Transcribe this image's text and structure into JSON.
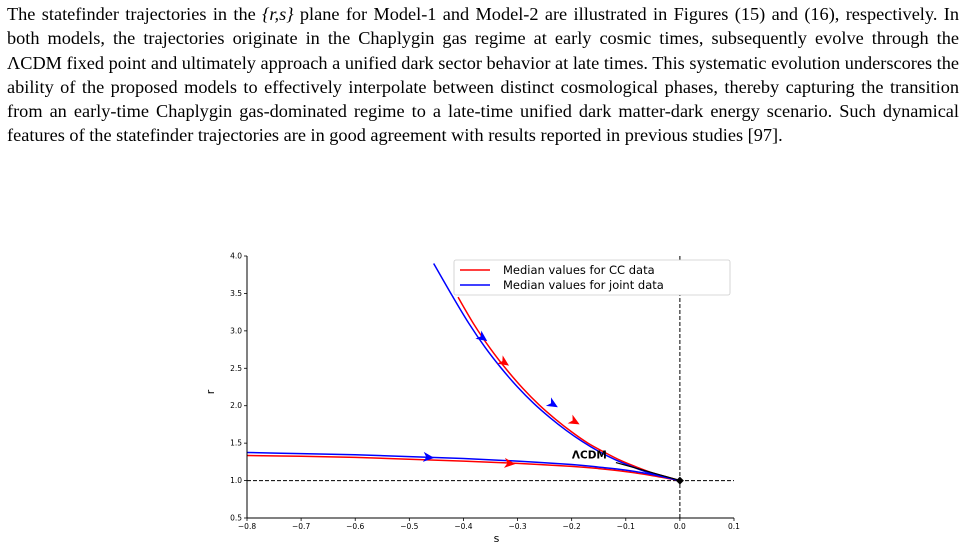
{
  "paragraph": {
    "part1": "The statefinder trajectories in the ",
    "math": "{r,s}",
    "part2": " plane for Model-1 and Model-2 are illustrated in Figures (15) and (16), respectively. In both models, the trajectories originate in the Chaplygin gas regime at early cosmic times, subsequently evolve through the ΛCDM fixed point and ultimately approach a unified dark sector behavior at late times. This systematic evolution underscores the ability of the proposed models to effectively interpolate between distinct cosmological phases, thereby capturing the transition from an early-time Chaplygin gas-dominated regime to a late-time unified dark matter-dark energy scenario. Such dynamical features of the statefinder trajectories are in good agreement with results reported in previous studies [97]."
  },
  "chart_data": {
    "type": "line",
    "xlabel": "s",
    "ylabel": "r",
    "xlim": [
      -0.8,
      0.1
    ],
    "ylim": [
      0.5,
      4.0
    ],
    "xticks": [
      "−0.8",
      "−0.7",
      "−0.6",
      "−0.5",
      "−0.4",
      "−0.3",
      "−0.2",
      "−0.1",
      "0.0",
      "0.1"
    ],
    "yticks": [
      "0.5",
      "1.0",
      "1.5",
      "2.0",
      "2.5",
      "3.0",
      "3.5",
      "4.0"
    ],
    "grid": false,
    "legend_position": "top-right",
    "annotation": "ΛCDM",
    "lcdm_point": {
      "s": 0.0,
      "r": 1.0
    },
    "series": [
      {
        "name": "Median values for CC data",
        "color": "#ff0000",
        "branches": [
          [
            [
              -0.41,
              3.45
            ],
            [
              -0.38,
              3.08
            ],
            [
              -0.35,
              2.76
            ],
            [
              -0.32,
              2.48
            ],
            [
              -0.29,
              2.23
            ],
            [
              -0.26,
              2.01
            ],
            [
              -0.23,
              1.82
            ],
            [
              -0.2,
              1.65
            ],
            [
              -0.17,
              1.5
            ],
            [
              -0.14,
              1.38
            ],
            [
              -0.11,
              1.27
            ],
            [
              -0.08,
              1.18
            ],
            [
              -0.05,
              1.1
            ],
            [
              -0.02,
              1.04
            ],
            [
              0.0,
              1.0
            ]
          ],
          [
            [
              -0.8,
              1.335
            ],
            [
              -0.7,
              1.325
            ],
            [
              -0.6,
              1.31
            ],
            [
              -0.5,
              1.285
            ],
            [
              -0.4,
              1.26
            ],
            [
              -0.3,
              1.23
            ],
            [
              -0.2,
              1.19
            ],
            [
              -0.15,
              1.16
            ],
            [
              -0.1,
              1.12
            ],
            [
              -0.05,
              1.065
            ],
            [
              0.0,
              1.0
            ]
          ]
        ],
        "arrows": [
          [
            -0.325,
            2.58
          ],
          [
            -0.195,
            1.79
          ],
          [
            -0.315,
            1.23
          ]
        ]
      },
      {
        "name": "Median values for joint data",
        "color": "#0000ff",
        "branches": [
          [
            [
              -0.455,
              3.9
            ],
            [
              -0.42,
              3.46
            ],
            [
              -0.39,
              3.1
            ],
            [
              -0.36,
              2.78
            ],
            [
              -0.33,
              2.5
            ],
            [
              -0.3,
              2.25
            ],
            [
              -0.27,
              2.03
            ],
            [
              -0.24,
              1.84
            ],
            [
              -0.21,
              1.67
            ],
            [
              -0.18,
              1.52
            ],
            [
              -0.15,
              1.39
            ],
            [
              -0.12,
              1.28
            ],
            [
              -0.09,
              1.19
            ],
            [
              -0.06,
              1.11
            ],
            [
              -0.03,
              1.05
            ],
            [
              0.0,
              1.0
            ]
          ],
          [
            [
              -0.8,
              1.375
            ],
            [
              -0.7,
              1.36
            ],
            [
              -0.6,
              1.345
            ],
            [
              -0.5,
              1.32
            ],
            [
              -0.4,
              1.295
            ],
            [
              -0.3,
              1.26
            ],
            [
              -0.2,
              1.215
            ],
            [
              -0.15,
              1.18
            ],
            [
              -0.1,
              1.14
            ],
            [
              -0.05,
              1.08
            ],
            [
              0.0,
              1.0
            ]
          ]
        ],
        "arrows": [
          [
            -0.365,
            2.91
          ],
          [
            -0.235,
            2.02
          ],
          [
            -0.465,
            1.31
          ]
        ]
      }
    ]
  }
}
